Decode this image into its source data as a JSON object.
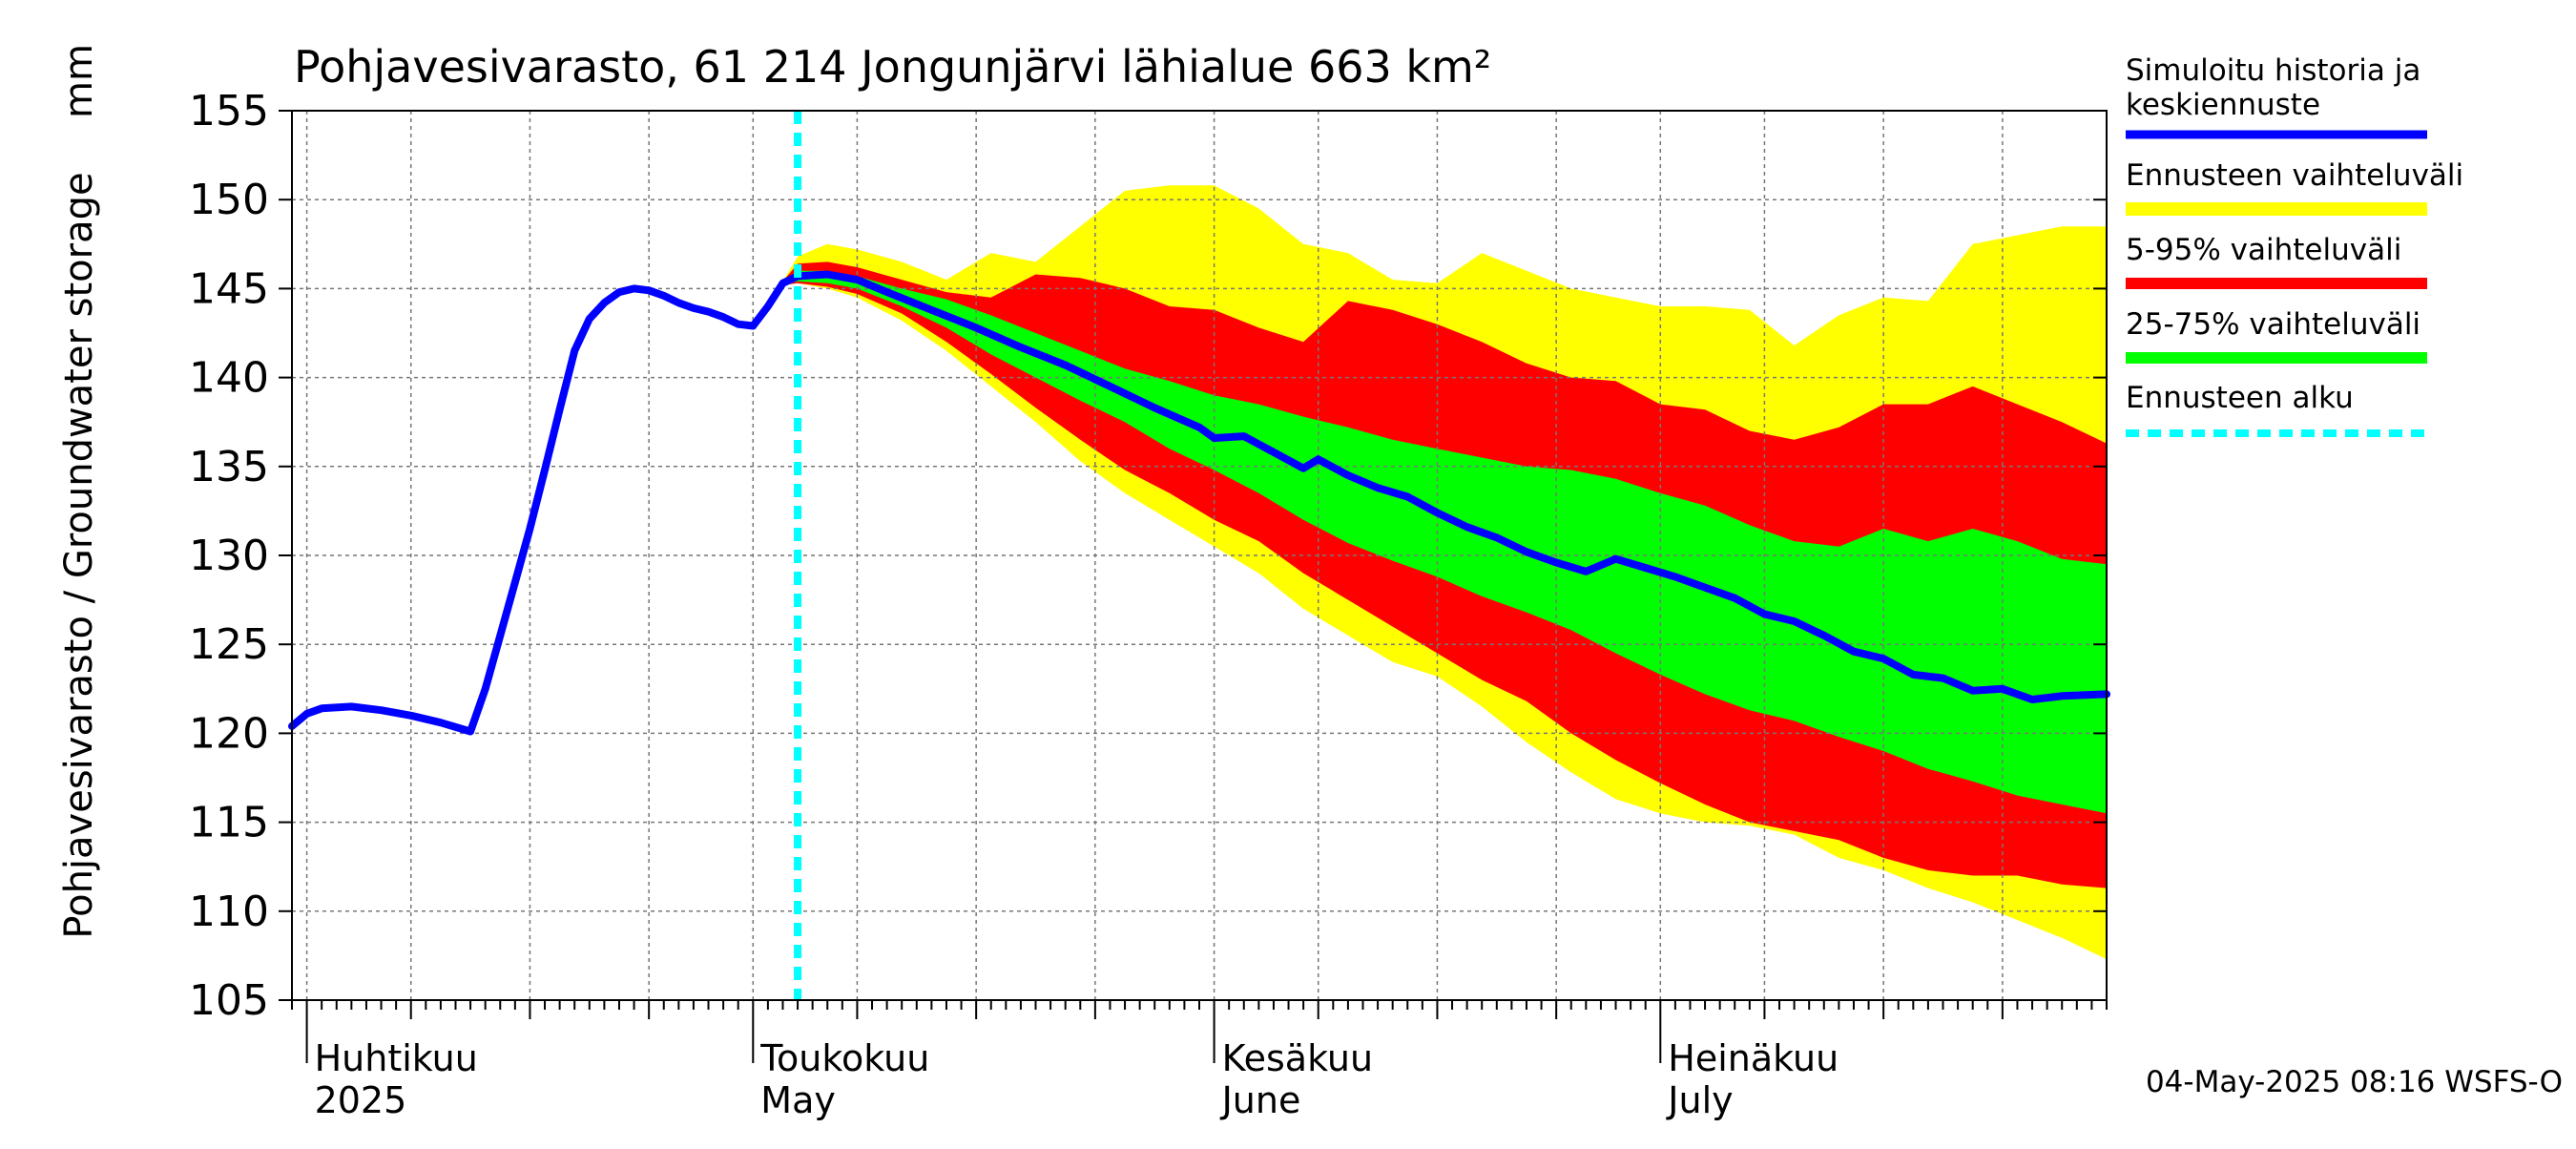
{
  "chart_data": {
    "type": "area",
    "title": "Pohjavesivarasto, 61 214 Jongunjärvi lähialue 663 km²",
    "ylabel": "Pohjavesivarasto / Groundwater storage",
    "yunit": "mm",
    "ylim": [
      105,
      155
    ],
    "yticks": [
      105,
      110,
      115,
      120,
      125,
      130,
      135,
      140,
      145,
      150,
      155
    ],
    "xlim": [
      "2025-03-31",
      "2025-07-31"
    ],
    "month_labels": [
      {
        "date": "2025-04-01",
        "fi": "Huhtikuu",
        "en": "2025"
      },
      {
        "date": "2025-05-01",
        "fi": "Toukokuu",
        "en": "May"
      },
      {
        "date": "2025-06-01",
        "fi": "Kesäkuu",
        "en": "June"
      },
      {
        "date": "2025-07-01",
        "fi": "Heinäkuu",
        "en": "July"
      }
    ],
    "forecast_start": "2025-05-04",
    "grid": true,
    "legend_placement": "right",
    "series": [
      {
        "name": "Simuloitu historia ja keskiennuste",
        "color": "#0000ff",
        "points": [
          [
            "2025-03-31",
            120.4
          ],
          [
            "2025-04-01",
            121.1
          ],
          [
            "2025-04-02",
            121.4
          ],
          [
            "2025-04-04",
            121.5
          ],
          [
            "2025-04-06",
            121.3
          ],
          [
            "2025-04-08",
            121.0
          ],
          [
            "2025-04-10",
            120.6
          ],
          [
            "2025-04-12",
            120.1
          ],
          [
            "2025-04-13",
            122.5
          ],
          [
            "2025-04-14",
            125.5
          ],
          [
            "2025-04-15",
            128.5
          ],
          [
            "2025-04-16",
            131.5
          ],
          [
            "2025-04-17",
            134.8
          ],
          [
            "2025-04-18",
            138.2
          ],
          [
            "2025-04-19",
            141.5
          ],
          [
            "2025-04-20",
            143.3
          ],
          [
            "2025-04-21",
            144.2
          ],
          [
            "2025-04-22",
            144.8
          ],
          [
            "2025-04-23",
            145.0
          ],
          [
            "2025-04-24",
            144.9
          ],
          [
            "2025-04-25",
            144.6
          ],
          [
            "2025-04-26",
            144.2
          ],
          [
            "2025-04-27",
            143.9
          ],
          [
            "2025-04-28",
            143.7
          ],
          [
            "2025-04-29",
            143.4
          ],
          [
            "2025-04-30",
            143.0
          ],
          [
            "2025-05-01",
            142.9
          ],
          [
            "2025-05-02",
            144.0
          ],
          [
            "2025-05-03",
            145.3
          ],
          [
            "2025-05-04",
            145.7
          ],
          [
            "2025-05-06",
            145.8
          ],
          [
            "2025-05-08",
            145.5
          ],
          [
            "2025-05-10",
            144.8
          ],
          [
            "2025-05-13",
            143.8
          ],
          [
            "2025-05-16",
            142.8
          ],
          [
            "2025-05-19",
            141.7
          ],
          [
            "2025-05-22",
            140.7
          ],
          [
            "2025-05-25",
            139.5
          ],
          [
            "2025-05-28",
            138.3
          ],
          [
            "2025-05-31",
            137.2
          ],
          [
            "2025-06-01",
            136.6
          ],
          [
            "2025-06-03",
            136.7
          ],
          [
            "2025-06-05",
            135.8
          ],
          [
            "2025-06-07",
            134.9
          ],
          [
            "2025-06-08",
            135.4
          ],
          [
            "2025-06-10",
            134.5
          ],
          [
            "2025-06-12",
            133.8
          ],
          [
            "2025-06-14",
            133.3
          ],
          [
            "2025-06-16",
            132.4
          ],
          [
            "2025-06-18",
            131.6
          ],
          [
            "2025-06-20",
            131.0
          ],
          [
            "2025-06-22",
            130.2
          ],
          [
            "2025-06-24",
            129.6
          ],
          [
            "2025-06-26",
            129.1
          ],
          [
            "2025-06-28",
            129.8
          ],
          [
            "2025-06-30",
            129.3
          ],
          [
            "2025-07-02",
            128.8
          ],
          [
            "2025-07-04",
            128.2
          ],
          [
            "2025-07-06",
            127.6
          ],
          [
            "2025-07-08",
            126.7
          ],
          [
            "2025-07-10",
            126.3
          ],
          [
            "2025-07-12",
            125.5
          ],
          [
            "2025-07-14",
            124.6
          ],
          [
            "2025-07-16",
            124.2
          ],
          [
            "2025-07-18",
            123.3
          ],
          [
            "2025-07-20",
            123.1
          ],
          [
            "2025-07-22",
            122.4
          ],
          [
            "2025-07-24",
            122.5
          ],
          [
            "2025-07-26",
            121.9
          ],
          [
            "2025-07-28",
            122.1
          ],
          [
            "2025-07-31",
            122.2
          ]
        ]
      },
      {
        "name": "Ennusteen vaihteluväli",
        "color": "#ffff00",
        "x": [
          "2025-05-03",
          "2025-05-04",
          "2025-05-06",
          "2025-05-08",
          "2025-05-11",
          "2025-05-14",
          "2025-05-17",
          "2025-05-20",
          "2025-05-23",
          "2025-05-26",
          "2025-05-29",
          "2025-06-01",
          "2025-06-04",
          "2025-06-07",
          "2025-06-10",
          "2025-06-13",
          "2025-06-16",
          "2025-06-19",
          "2025-06-22",
          "2025-06-25",
          "2025-06-28",
          "2025-07-01",
          "2025-07-04",
          "2025-07-07",
          "2025-07-10",
          "2025-07-13",
          "2025-07-16",
          "2025-07-19",
          "2025-07-22",
          "2025-07-25",
          "2025-07-28",
          "2025-07-31"
        ],
        "upper": [
          145.4,
          146.8,
          147.5,
          147.2,
          146.5,
          145.5,
          147.0,
          146.5,
          148.5,
          150.5,
          150.8,
          150.8,
          149.5,
          147.5,
          147.0,
          145.5,
          145.3,
          147.0,
          146.0,
          145.0,
          144.5,
          144.0,
          144.0,
          143.8,
          141.8,
          143.5,
          144.5,
          144.3,
          147.5,
          148.0,
          148.5,
          148.5
        ],
        "lower": [
          145.2,
          145.3,
          145.0,
          144.5,
          143.2,
          141.5,
          139.5,
          137.5,
          135.3,
          133.5,
          132.0,
          130.5,
          129.0,
          127.0,
          125.5,
          124.0,
          123.2,
          121.5,
          119.5,
          117.8,
          116.3,
          115.5,
          115.0,
          114.8,
          114.3,
          113.0,
          112.3,
          111.3,
          110.5,
          109.5,
          108.5,
          107.3
        ]
      },
      {
        "name": "5-95% vaihteluväli",
        "color": "#ff0000",
        "x": [
          "2025-05-03",
          "2025-05-04",
          "2025-05-06",
          "2025-05-08",
          "2025-05-11",
          "2025-05-14",
          "2025-05-17",
          "2025-05-20",
          "2025-05-23",
          "2025-05-26",
          "2025-05-29",
          "2025-06-01",
          "2025-06-04",
          "2025-06-07",
          "2025-06-10",
          "2025-06-13",
          "2025-06-16",
          "2025-06-19",
          "2025-06-22",
          "2025-06-25",
          "2025-06-28",
          "2025-07-01",
          "2025-07-04",
          "2025-07-07",
          "2025-07-10",
          "2025-07-13",
          "2025-07-16",
          "2025-07-19",
          "2025-07-22",
          "2025-07-25",
          "2025-07-28",
          "2025-07-31"
        ],
        "upper": [
          145.4,
          146.4,
          146.5,
          146.2,
          145.5,
          144.8,
          144.5,
          145.8,
          145.6,
          145.0,
          144.0,
          143.8,
          142.8,
          142.0,
          144.3,
          143.8,
          143.0,
          142.0,
          140.8,
          140.0,
          139.8,
          138.5,
          138.2,
          137.0,
          136.5,
          137.2,
          138.5,
          138.5,
          139.5,
          138.5,
          137.5,
          136.3
        ],
        "lower": [
          145.2,
          145.3,
          145.1,
          144.7,
          143.6,
          142.0,
          140.2,
          138.3,
          136.5,
          134.8,
          133.5,
          132.0,
          130.8,
          129.0,
          127.5,
          126.0,
          124.5,
          123.0,
          121.8,
          120.0,
          118.5,
          117.2,
          116.0,
          115.0,
          114.5,
          114.0,
          113.0,
          112.3,
          112.0,
          112.0,
          111.5,
          111.3
        ]
      },
      {
        "name": "25-75% vaihteluväli",
        "color": "#00ff00",
        "x": [
          "2025-05-03",
          "2025-05-04",
          "2025-05-06",
          "2025-05-08",
          "2025-05-11",
          "2025-05-14",
          "2025-05-17",
          "2025-05-20",
          "2025-05-23",
          "2025-05-26",
          "2025-05-29",
          "2025-06-01",
          "2025-06-04",
          "2025-06-07",
          "2025-06-10",
          "2025-06-13",
          "2025-06-16",
          "2025-06-19",
          "2025-06-22",
          "2025-06-25",
          "2025-06-28",
          "2025-07-01",
          "2025-07-04",
          "2025-07-07",
          "2025-07-10",
          "2025-07-13",
          "2025-07-16",
          "2025-07-19",
          "2025-07-22",
          "2025-07-25",
          "2025-07-28",
          "2025-07-31"
        ],
        "upper": [
          145.4,
          146.0,
          146.0,
          145.7,
          145.0,
          144.4,
          143.5,
          142.5,
          141.5,
          140.5,
          139.8,
          139.0,
          138.5,
          137.8,
          137.2,
          136.5,
          136.0,
          135.5,
          135.0,
          134.8,
          134.3,
          133.5,
          132.8,
          131.7,
          130.8,
          130.5,
          131.5,
          130.8,
          131.5,
          130.8,
          129.8,
          129.5
        ],
        "lower": [
          145.2,
          145.4,
          145.3,
          145.0,
          144.0,
          142.8,
          141.3,
          140.0,
          138.7,
          137.5,
          136.0,
          134.8,
          133.5,
          132.0,
          130.7,
          129.7,
          128.8,
          127.7,
          126.8,
          125.8,
          124.5,
          123.3,
          122.2,
          121.3,
          120.7,
          119.8,
          119.0,
          118.0,
          117.3,
          116.5,
          116.0,
          115.5
        ]
      },
      {
        "name": "Ennusteen alku",
        "color": "#00ffff",
        "date": "2025-05-04"
      }
    ]
  },
  "footer": {
    "timestamp": "04-May-2025 08:16 WSFS-O"
  }
}
